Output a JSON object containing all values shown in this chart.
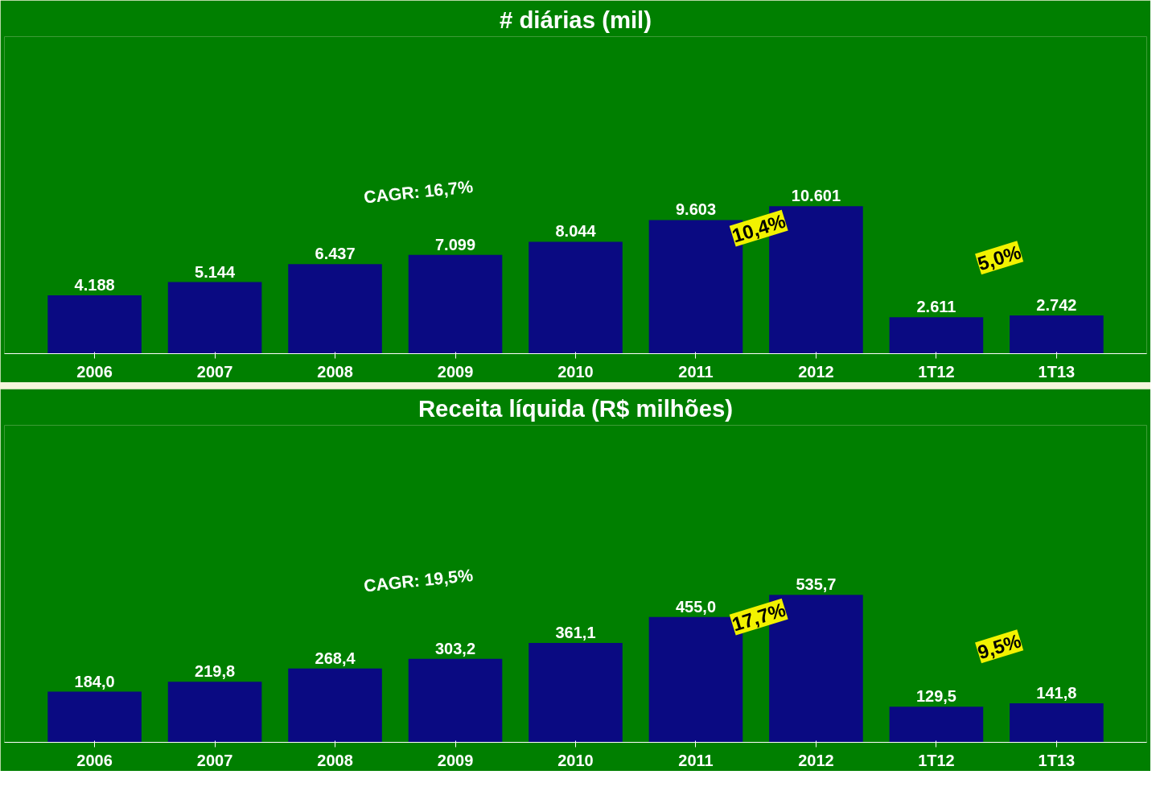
{
  "chart_data": [
    {
      "type": "bar",
      "title": "# diárias (mil)",
      "categories": [
        "2006",
        "2007",
        "2008",
        "2009",
        "2010",
        "2011",
        "2012",
        "1T12",
        "1T13"
      ],
      "values": [
        4188,
        5144,
        6437,
        7099,
        8044,
        9603,
        10601,
        2611,
        2742
      ],
      "value_labels": [
        "4.188",
        "5.144",
        "6.437",
        "7.099",
        "8.044",
        "9.603",
        "10.601",
        "2.611",
        "2.742"
      ],
      "color": "#0a0a82",
      "tick_labels": "x",
      "annotations": [
        "CAGR: 16,7%",
        "10,4%",
        "5,0%"
      ]
    },
    {
      "type": "bar",
      "title": "Receita líquida (R$ milhões)",
      "categories": [
        "2006",
        "2007",
        "2008",
        "2009",
        "2010",
        "2011",
        "2012",
        "1T12",
        "1T13"
      ],
      "values": [
        184.0,
        219.8,
        268.4,
        303.2,
        361.1,
        455.0,
        535.7,
        129.5,
        141.8
      ],
      "value_labels": [
        "184,0",
        "219,8",
        "268,4",
        "303,2",
        "361,1",
        "455,0",
        "535,7",
        "129,5",
        "141,8"
      ],
      "color": "#0a0a82",
      "tick_labels": "x",
      "annotations": [
        "CAGR: 19,5%",
        "17,7%",
        "9,5%"
      ]
    }
  ]
}
